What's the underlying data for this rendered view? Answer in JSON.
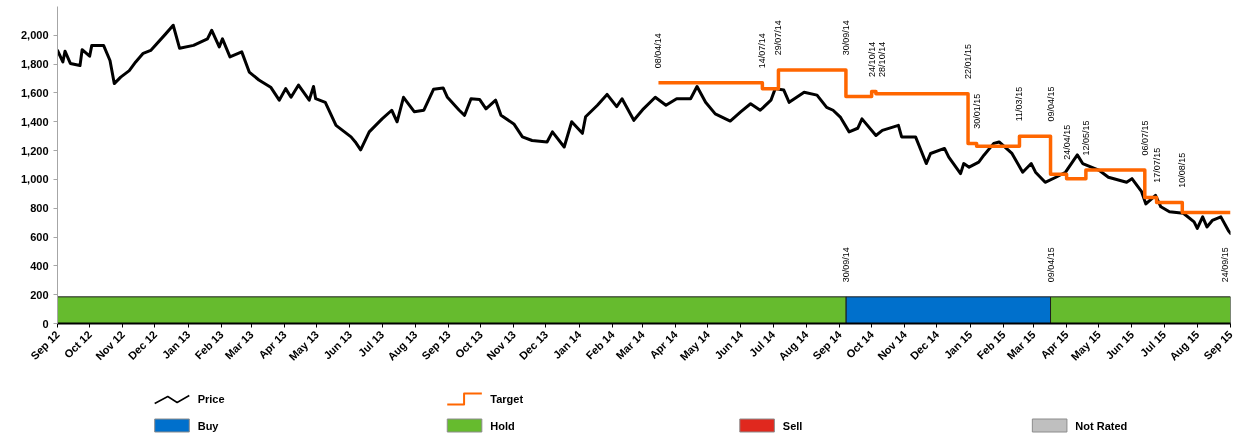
{
  "chart_data": {
    "type": "line",
    "xlim": [
      "2012-09-24",
      "2015-09-24"
    ],
    "ylim": [
      0,
      2200
    ],
    "legend": "bottom",
    "xticks": [
      {
        "value": "2012-09-24",
        "label": "Sep 12"
      },
      {
        "value": "2012-10-24",
        "label": "Oct 12"
      },
      {
        "value": "2012-11-24",
        "label": "Nov 12"
      },
      {
        "value": "2012-12-24",
        "label": "Dec 12"
      },
      {
        "value": "2013-01-24",
        "label": "Jan 13"
      },
      {
        "value": "2013-02-24",
        "label": "Feb 13"
      },
      {
        "value": "2013-03-24",
        "label": "Mar 13"
      },
      {
        "value": "2013-04-24",
        "label": "Apr 13"
      },
      {
        "value": "2013-05-24",
        "label": "May 13"
      },
      {
        "value": "2013-06-24",
        "label": "Jun 13"
      },
      {
        "value": "2013-07-24",
        "label": "Jul 13"
      },
      {
        "value": "2013-08-24",
        "label": "Aug 13"
      },
      {
        "value": "2013-09-24",
        "label": "Sep 13"
      },
      {
        "value": "2013-10-24",
        "label": "Oct 13"
      },
      {
        "value": "2013-11-24",
        "label": "Nov 13"
      },
      {
        "value": "2013-12-24",
        "label": "Dec 13"
      },
      {
        "value": "2014-01-24",
        "label": "Jan 14"
      },
      {
        "value": "2014-02-24",
        "label": "Feb 14"
      },
      {
        "value": "2014-03-24",
        "label": "Mar 14"
      },
      {
        "value": "2014-04-24",
        "label": "Apr 14"
      },
      {
        "value": "2014-05-24",
        "label": "May 14"
      },
      {
        "value": "2014-06-24",
        "label": "Jun 14"
      },
      {
        "value": "2014-07-24",
        "label": "Jul 14"
      },
      {
        "value": "2014-08-24",
        "label": "Aug 14"
      },
      {
        "value": "2014-09-24",
        "label": "Sep 14"
      },
      {
        "value": "2014-10-24",
        "label": "Oct 14"
      },
      {
        "value": "2014-11-24",
        "label": "Nov 14"
      },
      {
        "value": "2014-12-24",
        "label": "Dec 14"
      },
      {
        "value": "2015-01-24",
        "label": "Jan 15"
      },
      {
        "value": "2015-02-24",
        "label": "Feb 15"
      },
      {
        "value": "2015-03-24",
        "label": "Mar 15"
      },
      {
        "value": "2015-04-24",
        "label": "Apr 15"
      },
      {
        "value": "2015-05-24",
        "label": "May 15"
      },
      {
        "value": "2015-06-24",
        "label": "Jun 15"
      },
      {
        "value": "2015-07-24",
        "label": "Jul 15"
      },
      {
        "value": "2015-08-24",
        "label": "Aug 15"
      },
      {
        "value": "2015-09-24",
        "label": "Sep 15"
      }
    ],
    "yticks": [
      0,
      200,
      400,
      600,
      800,
      {
        "value": 1000,
        "label": "1,000"
      },
      {
        "value": 1200,
        "label": "1,200"
      },
      {
        "value": 1400,
        "label": "1,400"
      },
      {
        "value": 1600,
        "label": "1,600"
      },
      {
        "value": 1800,
        "label": "1,800"
      },
      {
        "value": 2000,
        "label": "2,000"
      }
    ],
    "series": [
      {
        "name": "Price",
        "color": "#000000",
        "x": [
          "2012-09-24",
          "2012-09-29",
          "2012-10-01",
          "2012-10-06",
          "2012-10-15",
          "2012-10-17",
          "2012-10-24",
          "2012-10-26",
          "2012-11-06",
          "2012-11-12",
          "2012-11-16",
          "2012-11-22",
          "2012-11-30",
          "2012-12-06",
          "2012-12-13",
          "2012-12-20",
          "2013-01-03",
          "2013-01-10",
          "2013-01-16",
          "2013-01-29",
          "2013-02-11",
          "2013-02-15",
          "2013-02-22",
          "2013-02-25",
          "2013-03-04",
          "2013-03-15",
          "2013-03-22",
          "2013-03-31",
          "2013-04-11",
          "2013-04-19",
          "2013-04-25",
          "2013-04-30",
          "2013-05-07",
          "2013-05-17",
          "2013-05-21",
          "2013-05-23",
          "2013-06-01",
          "2013-06-11",
          "2013-06-25",
          "2013-06-29",
          "2013-07-04",
          "2013-07-12",
          "2013-07-24",
          "2013-08-02",
          "2013-08-07",
          "2013-08-13",
          "2013-08-23",
          "2013-09-01",
          "2013-09-10",
          "2013-09-19",
          "2013-09-23",
          "2013-10-04",
          "2013-10-09",
          "2013-10-15",
          "2013-10-23",
          "2013-10-29",
          "2013-11-07",
          "2013-11-12",
          "2013-11-24",
          "2013-12-02",
          "2013-12-11",
          "2013-12-25",
          "2013-12-30",
          "2014-01-10",
          "2014-01-17",
          "2014-01-27",
          "2014-01-30",
          "2014-02-10",
          "2014-02-19",
          "2014-02-28",
          "2014-03-05",
          "2014-03-16",
          "2014-03-25",
          "2014-04-05",
          "2014-04-15",
          "2014-04-25",
          "2014-05-08",
          "2014-05-14",
          "2014-05-22",
          "2014-05-31",
          "2014-06-14",
          "2014-06-24",
          "2014-07-03",
          "2014-07-12",
          "2014-07-22",
          "2014-07-26",
          "2014-08-03",
          "2014-08-08",
          "2014-08-22",
          "2014-09-03",
          "2014-09-12",
          "2014-09-18",
          "2014-09-25",
          "2014-10-03",
          "2014-10-11",
          "2014-10-15",
          "2014-10-28",
          "2014-11-03",
          "2014-11-18",
          "2014-11-21",
          "2014-12-04",
          "2014-12-14",
          "2014-12-18",
          "2014-12-31",
          "2015-01-04",
          "2015-01-15",
          "2015-01-18",
          "2015-01-23",
          "2015-02-01",
          "2015-02-06",
          "2015-02-15",
          "2015-02-20",
          "2015-03-04",
          "2015-03-14",
          "2015-03-22",
          "2015-03-26",
          "2015-04-04",
          "2015-04-14",
          "2015-04-23",
          "2015-05-04",
          "2015-05-09",
          "2015-05-24",
          "2015-06-02",
          "2015-06-19",
          "2015-06-24",
          "2015-07-03",
          "2015-07-07",
          "2015-07-16",
          "2015-07-21",
          "2015-07-29",
          "2015-08-11",
          "2015-08-21",
          "2015-08-24",
          "2015-08-29",
          "2015-09-02",
          "2015-09-07",
          "2015-09-15",
          "2015-09-22",
          "2015-09-24"
        ],
        "values": [
          1895,
          1815,
          1890,
          1805,
          1790,
          1900,
          1855,
          1930,
          1930,
          1825,
          1665,
          1710,
          1755,
          1815,
          1875,
          1895,
          2010,
          2070,
          1910,
          1930,
          1975,
          2035,
          1920,
          1975,
          1850,
          1885,
          1745,
          1690,
          1640,
          1550,
          1630,
          1570,
          1655,
          1550,
          1645,
          1560,
          1535,
          1375,
          1295,
          1260,
          1205,
          1330,
          1420,
          1480,
          1400,
          1570,
          1470,
          1480,
          1625,
          1635,
          1570,
          1480,
          1445,
          1560,
          1555,
          1490,
          1550,
          1445,
          1385,
          1295,
          1270,
          1260,
          1330,
          1225,
          1400,
          1320,
          1435,
          1515,
          1590,
          1505,
          1560,
          1410,
          1490,
          1570,
          1515,
          1560,
          1560,
          1645,
          1535,
          1455,
          1405,
          1470,
          1525,
          1480,
          1550,
          1630,
          1620,
          1535,
          1605,
          1585,
          1500,
          1480,
          1430,
          1330,
          1355,
          1420,
          1305,
          1340,
          1375,
          1295,
          1295,
          1110,
          1180,
          1215,
          1155,
          1040,
          1110,
          1085,
          1120,
          1170,
          1250,
          1260,
          1180,
          1050,
          1110,
          1050,
          980,
          1015,
          1050,
          1170,
          1110,
          1065,
          1015,
          980,
          1005,
          915,
          830,
          890,
          810,
          775,
          765,
          705,
          660,
          740,
          670,
          715,
          740,
          645,
          625
        ]
      },
      {
        "name": "Target",
        "type": "step",
        "color": "#ff6600",
        "x": [
          "2014-04-08",
          "2014-07-14",
          "2014-07-29",
          "2014-09-30",
          "2014-10-24",
          "2014-10-28",
          "2015-01-22",
          "2015-01-30",
          "2015-03-11",
          "2015-04-09",
          "2015-04-24",
          "2015-05-12",
          "2015-07-06",
          "2015-07-17",
          "2015-08-10",
          "2015-09-24"
        ],
        "values": [
          1670,
          1630,
          1760,
          1575,
          1610,
          1595,
          1250,
          1230,
          1300,
          1035,
          1005,
          1065,
          875,
          840,
          770,
          770
        ]
      },
      {
        "name": "Buy",
        "type": "area",
        "color": "#0070cc",
        "x": [
          "2014-09-30",
          "2015-04-09"
        ],
        "values": [
          185,
          185
        ]
      },
      {
        "name": "Hold",
        "type": "area",
        "color": "#66bb2e",
        "x": [
          "2012-09-24",
          "2014-09-30"
        ],
        "values": [
          185,
          185
        ]
      },
      {
        "type": "area",
        "color": "#66bb2e",
        "x": [
          "2015-04-09",
          "2015-09-24"
        ],
        "values": [
          185,
          185
        ]
      },
      {
        "name": "Sell",
        "type": "area",
        "color": "#e0281e"
      },
      {
        "name": "Not Rated",
        "type": "area",
        "color": "#bfbfbf"
      }
    ],
    "annotations": [
      {
        "text": "08/04/14",
        "x": "2014-04-08",
        "y": 1670
      },
      {
        "text": "14/07/14",
        "x": "2014-07-14",
        "y": 1670
      },
      {
        "text": "29/07/14",
        "x": "2014-07-29",
        "y": 1760
      },
      {
        "text": "30/09/14",
        "x": "2014-09-30",
        "y": 1760
      },
      {
        "text": "24/10/14",
        "x": "2014-10-24",
        "y": 1610
      },
      {
        "text": "28/10/14",
        "x": "2014-10-28",
        "y": 1610
      },
      {
        "text": "22/01/15",
        "x": "2015-01-22",
        "y": 1595
      },
      {
        "text": "30/01/15",
        "x": "2015-01-30",
        "y": 1250
      },
      {
        "text": "11/03/15",
        "x": "2015-03-11",
        "y": 1300
      },
      {
        "text": "09/04/15",
        "x": "2015-04-09",
        "y": 1300
      },
      {
        "text": "24/04/15",
        "x": "2015-04-24",
        "y": 1035
      },
      {
        "text": "12/05/15",
        "x": "2015-05-12",
        "y": 1065
      },
      {
        "text": "06/07/15",
        "x": "2015-07-06",
        "y": 1065
      },
      {
        "text": "17/07/15",
        "x": "2015-07-17",
        "y": 875
      },
      {
        "text": "10/08/15",
        "x": "2015-08-10",
        "y": 840
      },
      {
        "text": "30/09/14",
        "x": "2014-09-30",
        "y": 185
      },
      {
        "text": "09/04/15",
        "x": "2015-04-09",
        "y": 185
      },
      {
        "text": "24/09/15",
        "x": "2015-09-24",
        "y": 185
      }
    ]
  }
}
